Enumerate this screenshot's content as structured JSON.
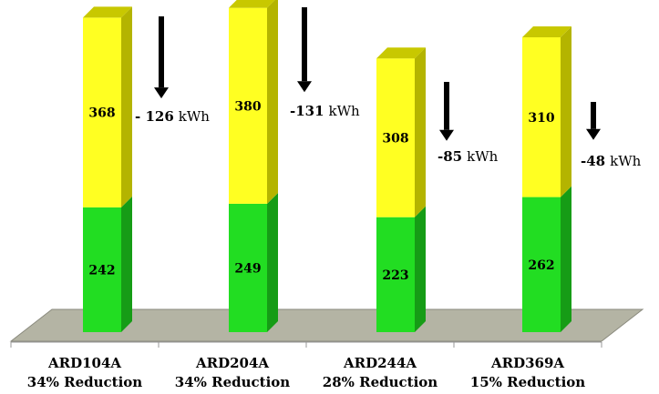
{
  "chart_data": {
    "type": "bar",
    "stacked": true,
    "categories": [
      "ARD104A",
      "ARD204A",
      "ARD244A",
      "ARD369A"
    ],
    "category_sublabels": [
      "34% Reduction",
      "34% Reduction",
      "28% Reduction",
      "15% Reduction"
    ],
    "series": [
      {
        "values": [
          242,
          249,
          223,
          262
        ],
        "color": "#22dd22"
      },
      {
        "values": [
          368,
          380,
          308,
          310
        ],
        "color": "#ffff22"
      }
    ],
    "annotations": [
      {
        "text": "- 126",
        "unit": "kWh"
      },
      {
        "text": "-131",
        "unit": "kWh"
      },
      {
        "text": "-85",
        "unit": "kWh"
      },
      {
        "text": "-48",
        "unit": "kWh"
      }
    ],
    "annotation_arrows": [
      126,
      131,
      85,
      48
    ],
    "colors": {
      "green_front": "#22dd22",
      "green_side": "#169c16",
      "green_top": "#44ee44",
      "yellow_front": "#ffff22",
      "yellow_side": "#b4b400",
      "yellow_top": "#c8c800",
      "floor": "#b4b4a4",
      "arrow": "#000000"
    },
    "three_d": true,
    "grid": false,
    "legend": "none"
  }
}
